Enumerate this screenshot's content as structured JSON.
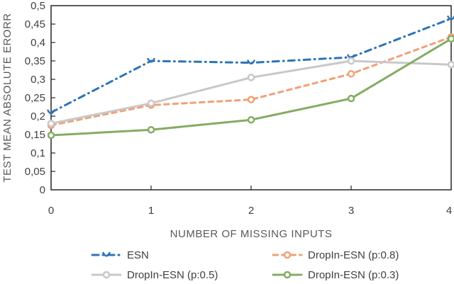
{
  "chart_data": {
    "type": "line",
    "title": "",
    "xlabel": "NUMBER OF MISSING INPUTS",
    "ylabel": "TEST MEAN ABSOLUTE ERORR",
    "x": [
      0,
      1,
      2,
      3,
      4
    ],
    "xlim": [
      0,
      4
    ],
    "ylim": [
      0,
      0.5
    ],
    "xticks": [
      0,
      1,
      2,
      3,
      4
    ],
    "xtick_labels": [
      "0",
      "1",
      "2",
      "3",
      "4"
    ],
    "yticks": [
      0,
      0.05,
      0.1,
      0.15,
      0.2,
      0.25,
      0.3,
      0.35,
      0.4,
      0.45,
      0.5
    ],
    "ytick_labels": [
      "0",
      "0,05",
      "0,1",
      "0,15",
      "0,2",
      "0,25",
      "0,3",
      "0,35",
      "0,4",
      "0,45",
      "0,5"
    ],
    "decimal_separator": ",",
    "grid": false,
    "legend_position": "bottom",
    "series": [
      {
        "name": "ESN",
        "values": [
          0.21,
          0.35,
          0.345,
          0.36,
          0.465
        ],
        "color": "#2E74B5",
        "dash": "dashdot",
        "marker": "vee"
      },
      {
        "name": "DropIn-ESN (p:0.8)",
        "values": [
          0.175,
          0.23,
          0.245,
          0.315,
          0.415
        ],
        "color": "#F0A178",
        "dash": "dashed",
        "marker": "circle"
      },
      {
        "name": "DropIn-ESN (p:0.5)",
        "values": [
          0.18,
          0.235,
          0.305,
          0.35,
          0.34
        ],
        "color": "#C8C8C8",
        "dash": "solid",
        "marker": "circle"
      },
      {
        "name": "DropIn-ESN (p:0.3)",
        "values": [
          0.148,
          0.163,
          0.19,
          0.248,
          0.41
        ],
        "color": "#84AC63",
        "dash": "solid",
        "marker": "circle"
      }
    ],
    "axis_color": "#262626",
    "tick_label_color": "#404040",
    "axis_title_color": "#595959"
  }
}
